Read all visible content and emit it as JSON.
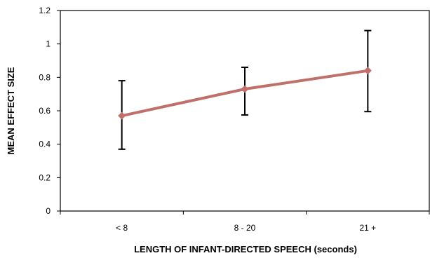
{
  "chart_data": {
    "type": "line",
    "title": "",
    "xlabel": "LENGTH OF INFANT-DIRECTED SPEECH (seconds)",
    "ylabel": "MEAN EFFECT SIZE",
    "categories": [
      "< 8",
      "8 - 20",
      "21 +"
    ],
    "series": [
      {
        "values": [
          0.57,
          0.73,
          0.84
        ],
        "error_low": [
          0.37,
          0.575,
          0.595
        ],
        "error_high": [
          0.78,
          0.86,
          1.08
        ],
        "color": "#c0706a",
        "marker": "diamond"
      }
    ],
    "ylim": [
      0,
      1.2
    ],
    "yticks": [
      0,
      0.2,
      0.4,
      0.6,
      0.8,
      1,
      1.2
    ],
    "ytick_labels": [
      "0",
      "0.2",
      "0.4",
      "0.6",
      "0.8",
      "1",
      "1.2"
    ],
    "grid": false,
    "legend": "none",
    "error_bar_color": "#000000"
  }
}
